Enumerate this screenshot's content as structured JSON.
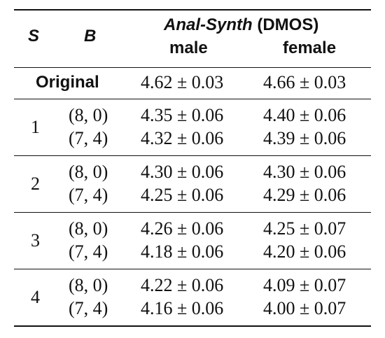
{
  "header": {
    "col_s": "S",
    "col_b": "B",
    "group_title_italic": "Anal-Synth",
    "group_title_suffix": " (DMOS)",
    "col_male": "male",
    "col_female": "female"
  },
  "original": {
    "label": "Original",
    "male": "4.62 ± 0.03",
    "female": "4.66 ± 0.03"
  },
  "groups": [
    {
      "s": "1",
      "rows": [
        {
          "b": "(8, 0)",
          "male": "4.35 ± 0.06",
          "female": "4.40 ± 0.06"
        },
        {
          "b": "(7, 4)",
          "male": "4.32 ± 0.06",
          "female": "4.39 ± 0.06"
        }
      ]
    },
    {
      "s": "2",
      "rows": [
        {
          "b": "(8, 0)",
          "male": "4.30 ± 0.06",
          "female": "4.30 ± 0.06"
        },
        {
          "b": "(7, 4)",
          "male": "4.25 ± 0.06",
          "female": "4.29 ± 0.06"
        }
      ]
    },
    {
      "s": "3",
      "rows": [
        {
          "b": "(8, 0)",
          "male": "4.26 ± 0.06",
          "female": "4.25 ± 0.07"
        },
        {
          "b": "(7, 4)",
          "male": "4.18 ± 0.06",
          "female": "4.20 ± 0.06"
        }
      ]
    },
    {
      "s": "4",
      "rows": [
        {
          "b": "(8, 0)",
          "male": "4.22 ± 0.06",
          "female": "4.09 ± 0.07"
        },
        {
          "b": "(7, 4)",
          "male": "4.16 ± 0.06",
          "female": "4.00 ± 0.07"
        }
      ]
    }
  ]
}
